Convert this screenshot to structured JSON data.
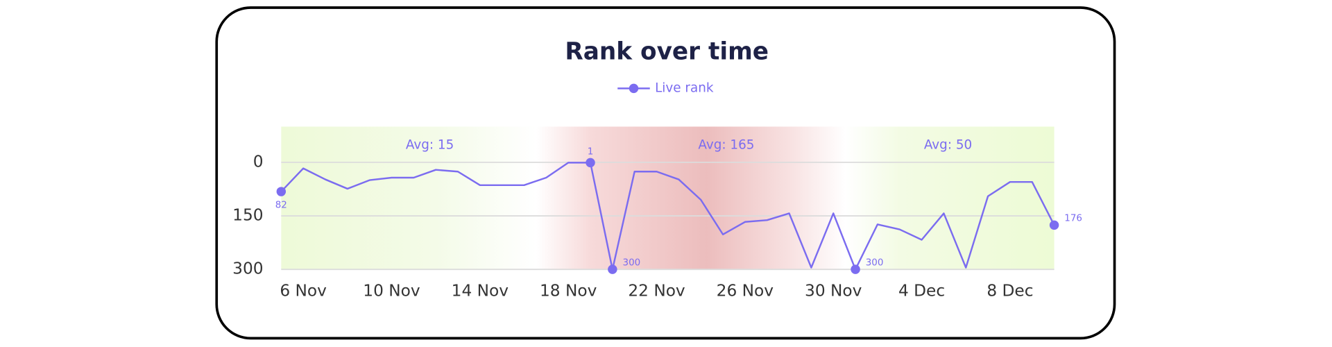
{
  "chart_data": {
    "type": "line",
    "title": "Rank over time",
    "categories": [
      null,
      "6 Nov",
      null,
      null,
      null,
      "10 Nov",
      null,
      null,
      null,
      "14 Nov",
      null,
      null,
      null,
      "18 Nov",
      null,
      null,
      null,
      "22 Nov",
      null,
      null,
      null,
      "26 Nov",
      null,
      null,
      null,
      "30 Nov",
      null,
      null,
      null,
      "4 Dec",
      null,
      null,
      null,
      "8 Dec",
      null,
      null
    ],
    "series": [
      {
        "name": "Live rank",
        "color": "#7b6cf0",
        "values": [
          82,
          17,
          48,
          74,
          50,
          43,
          43,
          21,
          26,
          64,
          64,
          64,
          43,
          1,
          1,
          300,
          26,
          26,
          48,
          105,
          202,
          167,
          162,
          143,
          295,
          143,
          300,
          174,
          188,
          217,
          143,
          295,
          95,
          55,
          55,
          176
        ],
        "value_labels": [
          "82",
          null,
          null,
          null,
          null,
          null,
          null,
          null,
          null,
          null,
          null,
          null,
          null,
          null,
          "1",
          "300",
          null,
          null,
          null,
          null,
          null,
          null,
          null,
          null,
          null,
          null,
          "300",
          null,
          null,
          null,
          null,
          null,
          null,
          null,
          null,
          "176"
        ]
      }
    ],
    "annotations": [
      "Avg: 15",
      "Avg: 165",
      "Avg: 50"
    ],
    "ylim": [
      -100,
      300
    ],
    "y_inverted": true,
    "yticks": [
      0,
      150,
      300
    ],
    "grid": true,
    "legend": "top"
  }
}
